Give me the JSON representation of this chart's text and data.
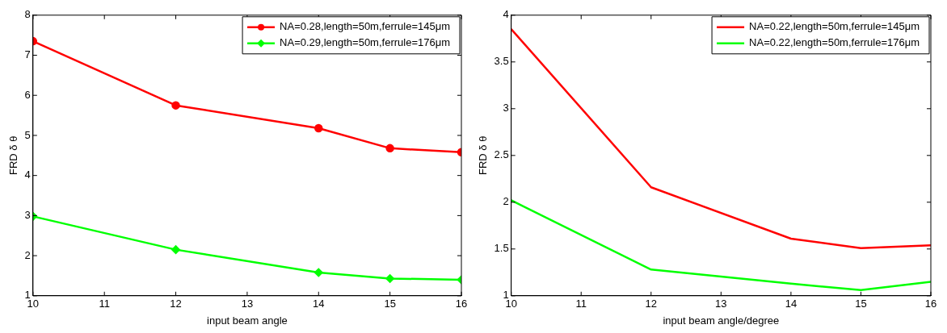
{
  "chart_data": [
    {
      "type": "line",
      "xlabel": "input beam angle",
      "ylabel": "FRD δ θ",
      "x": [
        10,
        12,
        14,
        15,
        16
      ],
      "xlim": [
        10,
        16
      ],
      "xticks": [
        10,
        11,
        12,
        13,
        14,
        15,
        16
      ],
      "ylim": [
        1,
        8
      ],
      "yticks": [
        1,
        2,
        3,
        4,
        5,
        6,
        7,
        8
      ],
      "grid": false,
      "legend": "top right",
      "series": [
        {
          "name": "NA=0.28,length=50m,ferrule=145μm",
          "color": "#ff0000",
          "marker": "circle",
          "values": [
            7.35,
            5.75,
            5.18,
            4.68,
            4.58
          ]
        },
        {
          "name": "NA=0.29,length=50m,ferrule=176μm",
          "color": "#00ff00",
          "marker": "diamond",
          "values": [
            2.98,
            2.15,
            1.58,
            1.43,
            1.4
          ]
        }
      ]
    },
    {
      "type": "line",
      "xlabel": "input beam angle/degree",
      "ylabel": "FRD δ θ",
      "x": [
        10,
        12,
        14,
        15,
        16
      ],
      "xlim": [
        10,
        16
      ],
      "xticks": [
        10,
        11,
        12,
        13,
        14,
        15,
        16
      ],
      "ylim": [
        1,
        4
      ],
      "yticks": [
        1,
        1.5,
        2,
        2.5,
        3,
        3.5,
        4
      ],
      "grid": false,
      "legend": "top right",
      "series": [
        {
          "name": "NA=0.22,length=50m,ferrule=145μm",
          "color": "#ff0000",
          "marker": "none",
          "values": [
            3.85,
            2.16,
            1.61,
            1.51,
            1.54
          ]
        },
        {
          "name": "NA=0.22,length=50m,ferrule=176μm",
          "color": "#00ff00",
          "marker": "none",
          "values": [
            2.02,
            1.28,
            1.13,
            1.06,
            1.15
          ]
        }
      ]
    }
  ]
}
